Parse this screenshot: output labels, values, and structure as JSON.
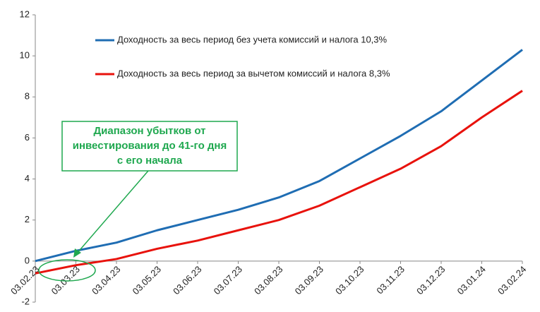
{
  "chart_data": {
    "type": "line",
    "categories": [
      "03.02.23",
      "03.03.23",
      "03.04.23",
      "03.05.23",
      "03.06.23",
      "03.07.23",
      "03.08.23",
      "03.09.23",
      "03.10.23",
      "03.11.23",
      "03.12.23",
      "03.01.24",
      "03.02.24"
    ],
    "series": [
      {
        "name": "Доходность за весь период без учета комиссий и налога 10,3%",
        "color": "#1f6db3",
        "values": [
          0,
          0.5,
          0.9,
          1.5,
          2.0,
          2.5,
          3.1,
          3.9,
          5.0,
          6.1,
          7.3,
          8.8,
          10.3
        ]
      },
      {
        "name": "Доходность за весь период за вычетом комиссий и налога 8,3%",
        "color": "#e8120c",
        "values": [
          -0.6,
          -0.2,
          0.1,
          0.6,
          1.0,
          1.5,
          2.0,
          2.7,
          3.6,
          4.5,
          5.6,
          7.0,
          8.3
        ]
      }
    ],
    "ylim": [
      -2,
      12
    ],
    "yticks": [
      -2,
      0,
      2,
      4,
      6,
      8,
      10,
      12
    ],
    "grid": false,
    "annotation": [
      "Диапазон убытков от",
      "инвестирования до 41-го дня",
      "с его начала"
    ],
    "annotation_color": "#1fa84f"
  }
}
